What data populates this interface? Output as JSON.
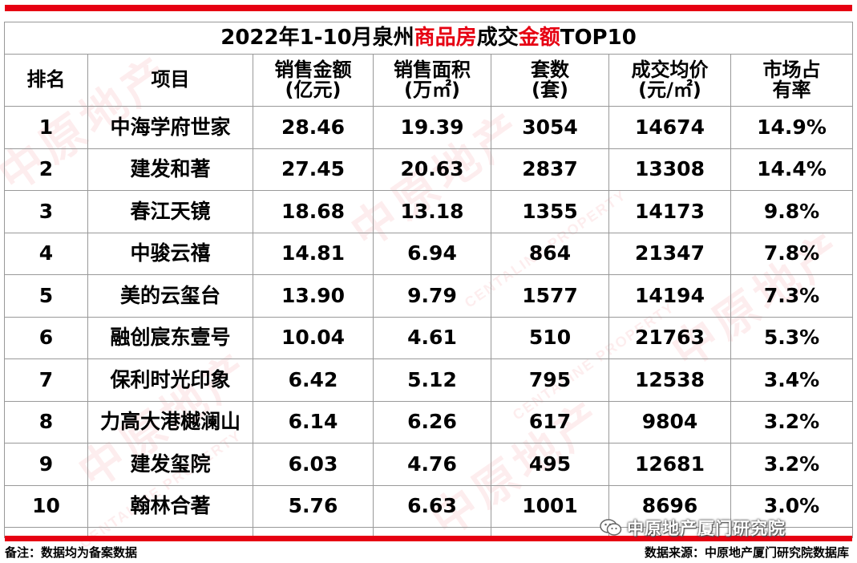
{
  "title": {
    "part1": "2022年1-10月泉州",
    "part2": "商品房",
    "part3": "成交",
    "part4": "金额",
    "part5": "TOP10"
  },
  "headers": [
    {
      "line1": "排名",
      "line2": ""
    },
    {
      "line1": "项目",
      "line2": ""
    },
    {
      "line1": "销售金额",
      "line2": "(亿元)"
    },
    {
      "line1": "销售面积",
      "line2": "(万㎡)"
    },
    {
      "line1": "套数",
      "line2": "(套)"
    },
    {
      "line1": "成交均价",
      "line2": "(元/㎡)"
    },
    {
      "line1": "市场占",
      "line2": "有率"
    }
  ],
  "rows": [
    {
      "rank": "1",
      "name": "中海学府世家",
      "amount": "28.46",
      "area": "19.39",
      "units": "3054",
      "price": "14674",
      "share": "14.9%"
    },
    {
      "rank": "2",
      "name": "建发和著",
      "amount": "27.45",
      "area": "20.63",
      "units": "2837",
      "price": "13308",
      "share": "14.4%"
    },
    {
      "rank": "3",
      "name": "春江天镜",
      "amount": "18.68",
      "area": "13.18",
      "units": "1355",
      "price": "14173",
      "share": "9.8%"
    },
    {
      "rank": "4",
      "name": "中骏云禧",
      "amount": "14.81",
      "area": "6.94",
      "units": "864",
      "price": "21347",
      "share": "7.8%"
    },
    {
      "rank": "5",
      "name": "美的云玺台",
      "amount": "13.90",
      "area": "9.79",
      "units": "1577",
      "price": "14194",
      "share": "7.3%"
    },
    {
      "rank": "6",
      "name": "融创宸东壹号",
      "amount": "10.04",
      "area": "4.61",
      "units": "510",
      "price": "21763",
      "share": "5.3%"
    },
    {
      "rank": "7",
      "name": "保利时光印象",
      "amount": "6.42",
      "area": "5.12",
      "units": "795",
      "price": "12538",
      "share": "3.4%"
    },
    {
      "rank": "8",
      "name": "力高大港樾澜山",
      "amount": "6.14",
      "area": "6.26",
      "units": "617",
      "price": "9804",
      "share": "3.2%"
    },
    {
      "rank": "9",
      "name": "建发玺院",
      "amount": "6.03",
      "area": "4.76",
      "units": "495",
      "price": "12681",
      "share": "3.2%"
    },
    {
      "rank": "10",
      "name": "翰林合著",
      "amount": "5.76",
      "area": "6.63",
      "units": "1001",
      "price": "8696",
      "share": "3.0%"
    }
  ],
  "footer": {
    "note": "备注：数据均为备案数据",
    "source": "数据来源：中原地产厦门研究院数据库"
  },
  "wechat_label": "中原地产厦门研究院",
  "watermark": {
    "text": "中原地产",
    "sub": "CENTALINE PROPERTY"
  },
  "colors": {
    "accent": "#e60012",
    "border": "#999999"
  },
  "icons": {
    "wechat": "wechat-icon"
  }
}
